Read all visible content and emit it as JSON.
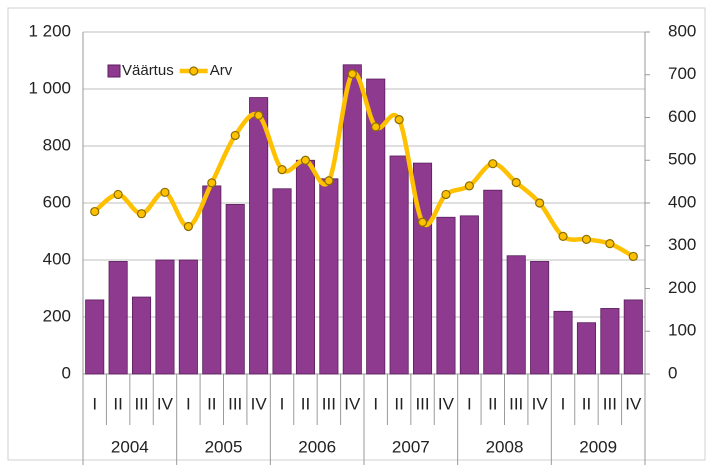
{
  "chart_data": {
    "type": "bar_line",
    "categories": [
      "I",
      "II",
      "III",
      "IV",
      "I",
      "II",
      "III",
      "IV",
      "I",
      "II",
      "III",
      "IV",
      "I",
      "II",
      "III",
      "IV",
      "I",
      "II",
      "III",
      "IV",
      "I",
      "II",
      "III",
      "IV"
    ],
    "groups": [
      "2004",
      "2005",
      "2006",
      "2007",
      "2008",
      "2009"
    ],
    "series": [
      {
        "name": "Väärtus",
        "type": "bar",
        "color": "#8e3a8f",
        "values": [
          260,
          395,
          270,
          400,
          400,
          660,
          595,
          970,
          650,
          750,
          685,
          1085,
          1035,
          765,
          740,
          550,
          555,
          645,
          415,
          395,
          220,
          180,
          230,
          260
        ]
      },
      {
        "name": "Arv",
        "type": "line",
        "axis": "y2",
        "color": "#ffc000",
        "values": [
          380,
          420,
          375,
          425,
          345,
          447,
          558,
          605,
          478,
          500,
          452,
          702,
          578,
          595,
          355,
          420,
          440,
          492,
          448,
          400,
          322,
          315,
          305,
          275
        ]
      }
    ],
    "ylim": [
      0,
      1200
    ],
    "yticks": [
      0,
      200,
      400,
      600,
      800,
      {
        "value": 1000,
        "label": "1 000"
      },
      {
        "value": 1200,
        "label": "1 200"
      }
    ],
    "y2lim": [
      0,
      800
    ],
    "y2ticks": [
      0,
      100,
      200,
      300,
      400,
      500,
      600,
      700,
      800
    ],
    "grid": true,
    "legend": "top-left"
  }
}
